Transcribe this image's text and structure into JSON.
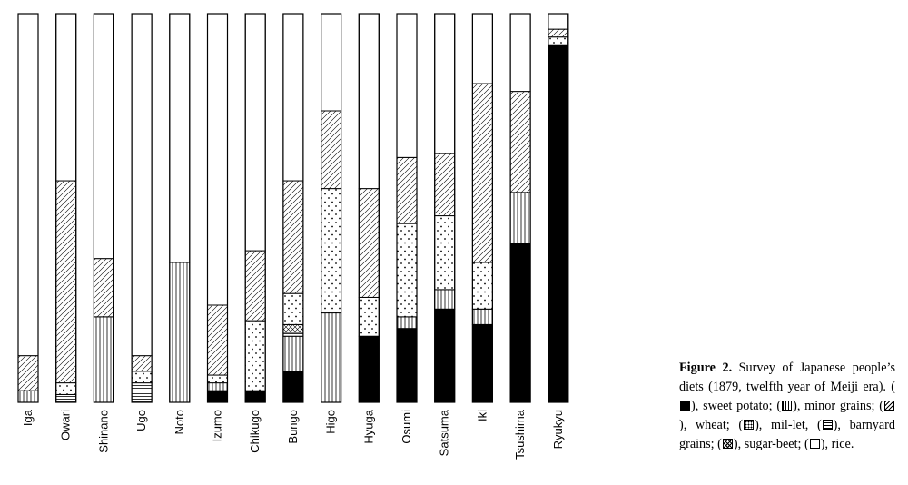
{
  "chart_data": {
    "type": "bar",
    "stacked": true,
    "percent_stacked": true,
    "categories": [
      "Iga",
      "Owari",
      "Shinano",
      "Ugo",
      "Noto",
      "Izumo",
      "Chikugo",
      "Bungo",
      "Higo",
      "Hyuga",
      "Osumi",
      "Satsuma",
      "Iki",
      "Tsushima",
      "Ryukyu"
    ],
    "series": [
      {
        "name": "sweet potato",
        "pattern": "solid",
        "values": [
          0,
          0,
          0,
          0,
          0,
          3,
          3,
          8,
          0,
          17,
          19,
          24,
          20,
          41,
          92
        ]
      },
      {
        "name": "minor grains",
        "pattern": "vertical",
        "values": [
          3,
          0,
          22,
          0,
          36,
          2,
          0,
          9,
          23,
          0,
          3,
          5,
          4,
          13,
          0
        ]
      },
      {
        "name": "barnyard grains",
        "pattern": "horizontal",
        "values": [
          0,
          2,
          0,
          5,
          0,
          0,
          0,
          1,
          0,
          0,
          0,
          0,
          0,
          0,
          0
        ]
      },
      {
        "name": "sugar-beet",
        "pattern": "crosshatch",
        "values": [
          0,
          0,
          0,
          0,
          0,
          0,
          0,
          2,
          0,
          0,
          0,
          0,
          0,
          0,
          0
        ]
      },
      {
        "name": "millet",
        "pattern": "dots",
        "values": [
          0,
          3,
          0,
          3,
          0,
          2,
          18,
          8,
          32,
          10,
          24,
          19,
          12,
          0,
          2
        ]
      },
      {
        "name": "wheat",
        "pattern": "diagonal",
        "values": [
          9,
          52,
          15,
          4,
          0,
          18,
          18,
          29,
          20,
          28,
          17,
          16,
          46,
          26,
          2
        ]
      },
      {
        "name": "rice",
        "pattern": "none",
        "values": [
          88,
          43,
          63,
          88,
          64,
          75,
          61,
          43,
          25,
          45,
          37,
          36,
          18,
          20,
          4
        ]
      }
    ],
    "ylim": [
      0,
      100
    ],
    "xlabel": "",
    "ylabel": ""
  },
  "caption": {
    "label": "Figure 2.",
    "text": "Survey of Japanese people’s diets (1879, twelfth year of Meiji era).",
    "legend_items": [
      {
        "pattern": "solid",
        "text": ", sweet potato;"
      },
      {
        "pattern": "vertical",
        "text": ", minor grains;"
      },
      {
        "pattern": "diagonal",
        "text": ", wheat;"
      },
      {
        "pattern": "dots",
        "text": ", mil-let,"
      },
      {
        "pattern": "horizontal",
        "text": ", barnyard grains;"
      },
      {
        "pattern": "crosshatch",
        "text": ", sugar-beet;"
      },
      {
        "pattern": "none",
        "text": ", rice."
      }
    ]
  }
}
